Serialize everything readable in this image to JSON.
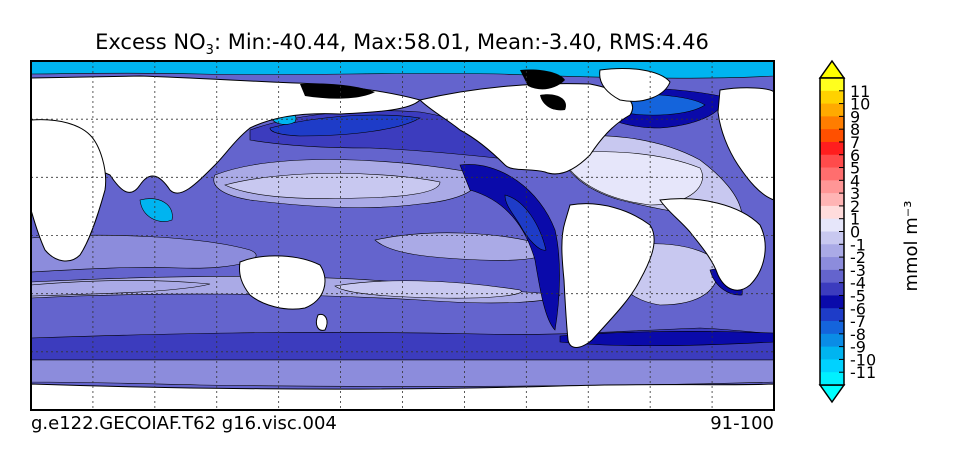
{
  "chart_data": {
    "type": "heatmap",
    "title": {
      "prefix": "Excess NO",
      "subscript": "3",
      "stats": ": Min:-40.44, Max:58.01, Mean:-3.40, RMS:4.46"
    },
    "units_label": "mmol m⁻³",
    "footer_left": "g.e122.GECOIAF.T62 g16.visc.004",
    "footer_right": "91-100",
    "grid": true,
    "colorbar": {
      "position": "right",
      "extend": "both",
      "ticks": [
        "11",
        "10",
        "9",
        "8",
        "7",
        "6",
        "5",
        "4",
        "3",
        "2",
        "1",
        "0",
        "-1",
        "-2",
        "-3",
        "-4",
        "-5",
        "-6",
        "-7",
        "-8",
        "-9",
        "-10",
        "-11"
      ],
      "colors_top_to_bottom": [
        "#ffff1e",
        "#ffd200",
        "#ffaa00",
        "#ff7d00",
        "#ff5000",
        "#ff1e1e",
        "#ff4b4b",
        "#ff6e6e",
        "#ff9696",
        "#ffb4b4",
        "#ffdcdc",
        "#e6e6fa",
        "#c8c8f0",
        "#aaaae6",
        "#8c8cdc",
        "#6464cd",
        "#3c3cbe",
        "#0a0aaa",
        "#1e3cc8",
        "#1464dc",
        "#0a8ce6",
        "#00b4f0",
        "#00d2ff",
        "#00f0ff"
      ],
      "over_color": "#ffff00",
      "under_color": "#00ffff"
    },
    "field_colors": {
      "ocean_base": "#6464cd",
      "minus1": "#e6e6fa",
      "minus2": "#c8c8f0",
      "minus3": "#aaaae6",
      "minus4": "#8c8cdc",
      "minus6": "#3c3cbe",
      "minus7": "#0a0aaa",
      "minus8": "#1e3cc8",
      "minus9": "#1464dc",
      "minus10": "#00b4f0",
      "land": "#ffffff",
      "ice": "#000000"
    }
  }
}
